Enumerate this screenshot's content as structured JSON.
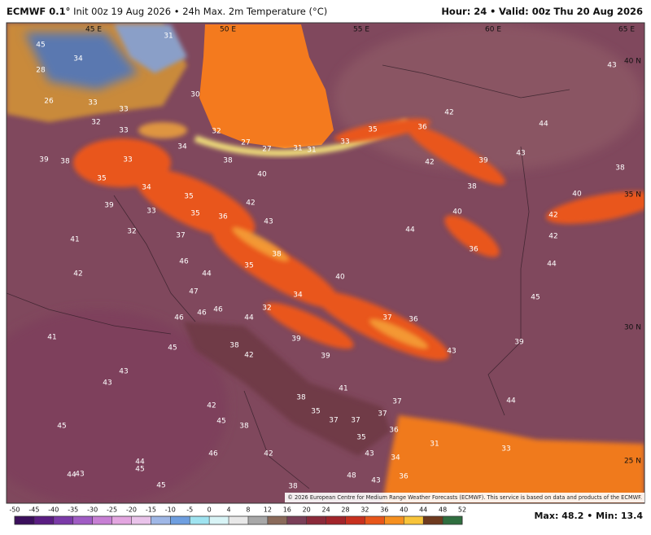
{
  "header": {
    "model": "ECMWF 0.1°",
    "init": "Init 00z 19 Aug 2026",
    "separator": "•",
    "product": "24h Max. 2m Temperature (°C)",
    "hour": "Hour: 24",
    "valid": "Valid: 00z Thu 20 Aug 2026"
  },
  "map": {
    "lon_labels": [
      "45 E",
      "50 E",
      "55 E",
      "60 E",
      "65 E"
    ],
    "lat_labels": [
      "40 N",
      "35 N",
      "30 N",
      "25 N"
    ],
    "labels": [
      45,
      34,
      28,
      26,
      33,
      33,
      32,
      33,
      31,
      30,
      32,
      27,
      27,
      31,
      31,
      33,
      35,
      36,
      42,
      44,
      43,
      43,
      42,
      39,
      38,
      38,
      40,
      42,
      42,
      44,
      45,
      39,
      44,
      40,
      44,
      36,
      39,
      38,
      35,
      33,
      34,
      38,
      40,
      34,
      35,
      33,
      35,
      36,
      42,
      43,
      39,
      32,
      37,
      41,
      42,
      46,
      44,
      35,
      38,
      40,
      34,
      47,
      46,
      46,
      44,
      32,
      46,
      39,
      39,
      37,
      36,
      43,
      45,
      38,
      42,
      41,
      43,
      43,
      41,
      38,
      37,
      35,
      37,
      37,
      37,
      36,
      35,
      42,
      45,
      38,
      45,
      46,
      42,
      43,
      34,
      31,
      33,
      44,
      45,
      44,
      43,
      45,
      38,
      48,
      43,
      36
    ],
    "copyright": "© 2026 European Centre for Medium Range Weather Forecasts (ECMWF). This service is based on data and products of the ECMWF."
  },
  "colorbar": {
    "ticks": [
      -50,
      -45,
      -40,
      -35,
      -30,
      -25,
      -20,
      -15,
      -10,
      -5,
      0,
      4,
      8,
      12,
      16,
      20,
      24,
      28,
      32,
      36,
      40,
      44,
      48,
      52
    ],
    "colors": [
      "#3b0f5c",
      "#5a1d82",
      "#7b3aa8",
      "#a05cc4",
      "#c77fd4",
      "#e3a6e0",
      "#e9c3ea",
      "#9fb7e6",
      "#6e9fe0",
      "#9fe3f0",
      "#d8f4f6",
      "#e8e8e8",
      "#a8a8a8",
      "#8a6a5a",
      "#7a3f58",
      "#8b2a3a",
      "#a2242a",
      "#c8301e",
      "#e8561a",
      "#f6901f",
      "#f8c43a",
      "#6e3a1e",
      "#2f6e3f"
    ]
  },
  "stats": {
    "max_label": "Max:",
    "max": 48.2,
    "min_label": "Min:",
    "min": 13.4
  }
}
